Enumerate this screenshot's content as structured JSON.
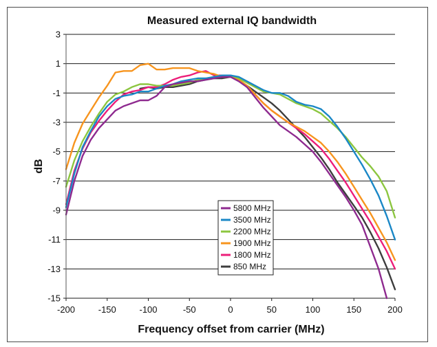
{
  "chart_data": {
    "type": "line",
    "title": "Measured external IQ bandwidth",
    "xlabel": "Frequency offset from carrier (MHz)",
    "ylabel": "dB",
    "xlim": [
      -200,
      200
    ],
    "ylim": [
      -15,
      3
    ],
    "xticks": [
      -200,
      -150,
      -100,
      -50,
      0,
      50,
      100,
      150,
      200
    ],
    "yticks": [
      3,
      1,
      -1,
      -3,
      -5,
      -7,
      -9,
      -11,
      -13,
      -15
    ],
    "xtick_labels": [
      "-200",
      "-150",
      "-100",
      "-50",
      "0",
      "50",
      "100",
      "150",
      "200"
    ],
    "ytick_labels": [
      "3",
      "1",
      "-1",
      "-3",
      "-5",
      "-7",
      "-9",
      "-11",
      "-13",
      "-15"
    ],
    "grid": "horizontal",
    "legend_position": "bottom-center",
    "series": [
      {
        "name": "5800 MHz",
        "color": "#8e2a8f",
        "points": [
          [
            -200,
            -9.3
          ],
          [
            -190,
            -7.0
          ],
          [
            -180,
            -5.3
          ],
          [
            -170,
            -4.2
          ],
          [
            -160,
            -3.4
          ],
          [
            -150,
            -2.8
          ],
          [
            -140,
            -2.2
          ],
          [
            -130,
            -1.9
          ],
          [
            -120,
            -1.7
          ],
          [
            -110,
            -1.5
          ],
          [
            -100,
            -1.5
          ],
          [
            -90,
            -1.2
          ],
          [
            -80,
            -0.6
          ],
          [
            -70,
            -0.4
          ],
          [
            -60,
            -0.3
          ],
          [
            -50,
            -0.2
          ],
          [
            -40,
            -0.2
          ],
          [
            -30,
            -0.1
          ],
          [
            -20,
            0.0
          ],
          [
            -10,
            0.1
          ],
          [
            0,
            0.1
          ],
          [
            10,
            -0.2
          ],
          [
            20,
            -0.6
          ],
          [
            30,
            -1.3
          ],
          [
            40,
            -2.0
          ],
          [
            50,
            -2.6
          ],
          [
            60,
            -3.2
          ],
          [
            70,
            -3.6
          ],
          [
            80,
            -4.0
          ],
          [
            90,
            -4.5
          ],
          [
            100,
            -5.0
          ],
          [
            110,
            -5.7
          ],
          [
            120,
            -6.5
          ],
          [
            130,
            -7.3
          ],
          [
            140,
            -8.1
          ],
          [
            150,
            -9.0
          ],
          [
            160,
            -10.0
          ],
          [
            170,
            -11.5
          ],
          [
            180,
            -13.0
          ],
          [
            190,
            -15.0
          ]
        ]
      },
      {
        "name": "3500 MHz",
        "color": "#1a87c6",
        "points": [
          [
            -200,
            -8.8
          ],
          [
            -190,
            -6.5
          ],
          [
            -180,
            -4.7
          ],
          [
            -170,
            -3.6
          ],
          [
            -160,
            -2.6
          ],
          [
            -150,
            -1.9
          ],
          [
            -140,
            -1.4
          ],
          [
            -130,
            -1.2
          ],
          [
            -120,
            -1.1
          ],
          [
            -110,
            -0.9
          ],
          [
            -100,
            -0.9
          ],
          [
            -90,
            -0.7
          ],
          [
            -80,
            -0.5
          ],
          [
            -70,
            -0.4
          ],
          [
            -60,
            -0.2
          ],
          [
            -50,
            -0.1
          ],
          [
            -40,
            0.0
          ],
          [
            -30,
            0.0
          ],
          [
            -20,
            0.1
          ],
          [
            -10,
            0.2
          ],
          [
            0,
            0.2
          ],
          [
            10,
            0.1
          ],
          [
            20,
            -0.2
          ],
          [
            30,
            -0.5
          ],
          [
            40,
            -0.8
          ],
          [
            50,
            -1.0
          ],
          [
            60,
            -1.0
          ],
          [
            70,
            -1.2
          ],
          [
            80,
            -1.6
          ],
          [
            90,
            -1.8
          ],
          [
            100,
            -1.9
          ],
          [
            110,
            -2.1
          ],
          [
            120,
            -2.6
          ],
          [
            130,
            -3.3
          ],
          [
            140,
            -4.1
          ],
          [
            150,
            -5.0
          ],
          [
            160,
            -5.9
          ],
          [
            170,
            -6.9
          ],
          [
            180,
            -8.0
          ],
          [
            190,
            -9.4
          ],
          [
            200,
            -11.0
          ]
        ]
      },
      {
        "name": "2200 MHz",
        "color": "#8cc63f",
        "points": [
          [
            -200,
            -7.4
          ],
          [
            -190,
            -5.6
          ],
          [
            -180,
            -4.3
          ],
          [
            -170,
            -3.3
          ],
          [
            -160,
            -2.4
          ],
          [
            -150,
            -1.6
          ],
          [
            -140,
            -1.1
          ],
          [
            -130,
            -0.9
          ],
          [
            -120,
            -0.6
          ],
          [
            -110,
            -0.4
          ],
          [
            -100,
            -0.4
          ],
          [
            -90,
            -0.5
          ],
          [
            -80,
            -0.5
          ],
          [
            -70,
            -0.5
          ],
          [
            -60,
            -0.4
          ],
          [
            -50,
            -0.3
          ],
          [
            -40,
            -0.1
          ],
          [
            -30,
            0.0
          ],
          [
            -20,
            0.1
          ],
          [
            -10,
            0.2
          ],
          [
            0,
            0.2
          ],
          [
            10,
            0.0
          ],
          [
            20,
            -0.3
          ],
          [
            30,
            -0.6
          ],
          [
            40,
            -0.9
          ],
          [
            50,
            -1.0
          ],
          [
            60,
            -1.1
          ],
          [
            70,
            -1.4
          ],
          [
            80,
            -1.7
          ],
          [
            90,
            -1.9
          ],
          [
            100,
            -2.1
          ],
          [
            110,
            -2.4
          ],
          [
            120,
            -2.9
          ],
          [
            130,
            -3.4
          ],
          [
            140,
            -4.0
          ],
          [
            150,
            -4.7
          ],
          [
            160,
            -5.4
          ],
          [
            170,
            -6.0
          ],
          [
            180,
            -6.7
          ],
          [
            190,
            -7.7
          ],
          [
            200,
            -9.5
          ]
        ]
      },
      {
        "name": "1900 MHz",
        "color": "#f7941d",
        "points": [
          [
            -200,
            -6.2
          ],
          [
            -190,
            -4.4
          ],
          [
            -180,
            -3.1
          ],
          [
            -170,
            -2.2
          ],
          [
            -160,
            -1.3
          ],
          [
            -150,
            -0.5
          ],
          [
            -140,
            0.4
          ],
          [
            -130,
            0.5
          ],
          [
            -120,
            0.5
          ],
          [
            -110,
            0.9
          ],
          [
            -100,
            1.0
          ],
          [
            -90,
            0.6
          ],
          [
            -80,
            0.6
          ],
          [
            -70,
            0.7
          ],
          [
            -60,
            0.7
          ],
          [
            -50,
            0.7
          ],
          [
            -40,
            0.5
          ],
          [
            -30,
            0.4
          ],
          [
            -20,
            0.3
          ],
          [
            -10,
            0.1
          ],
          [
            0,
            0.1
          ],
          [
            10,
            -0.1
          ],
          [
            20,
            -0.5
          ],
          [
            30,
            -1.1
          ],
          [
            40,
            -1.7
          ],
          [
            50,
            -2.2
          ],
          [
            60,
            -2.6
          ],
          [
            70,
            -3.0
          ],
          [
            80,
            -3.3
          ],
          [
            90,
            -3.6
          ],
          [
            100,
            -4.0
          ],
          [
            110,
            -4.4
          ],
          [
            120,
            -5.0
          ],
          [
            130,
            -5.7
          ],
          [
            140,
            -6.5
          ],
          [
            150,
            -7.4
          ],
          [
            160,
            -8.3
          ],
          [
            170,
            -9.2
          ],
          [
            180,
            -10.2
          ],
          [
            190,
            -11.2
          ],
          [
            200,
            -12.4
          ]
        ]
      },
      {
        "name": "1800 MHz",
        "color": "#ec1e79",
        "points": [
          [
            -200,
            -8.6
          ],
          [
            -190,
            -6.3
          ],
          [
            -180,
            -4.8
          ],
          [
            -170,
            -3.7
          ],
          [
            -160,
            -2.9
          ],
          [
            -150,
            -2.2
          ],
          [
            -140,
            -1.6
          ],
          [
            -130,
            -1.1
          ],
          [
            -120,
            -0.9
          ],
          [
            -110,
            -0.8
          ],
          [
            -100,
            -0.6
          ],
          [
            -90,
            -0.6
          ],
          [
            -80,
            -0.4
          ],
          [
            -70,
            -0.1
          ],
          [
            -60,
            0.1
          ],
          [
            -50,
            0.2
          ],
          [
            -40,
            0.4
          ],
          [
            -30,
            0.5
          ],
          [
            -20,
            0.2
          ],
          [
            -10,
            0.2
          ],
          [
            0,
            0.2
          ],
          [
            10,
            -0.1
          ],
          [
            20,
            -0.6
          ],
          [
            30,
            -1.1
          ],
          [
            40,
            -1.7
          ],
          [
            50,
            -2.2
          ],
          [
            60,
            -2.6
          ],
          [
            70,
            -3.0
          ],
          [
            80,
            -3.4
          ],
          [
            90,
            -3.8
          ],
          [
            100,
            -4.3
          ],
          [
            110,
            -4.8
          ],
          [
            120,
            -5.5
          ],
          [
            130,
            -6.3
          ],
          [
            140,
            -7.1
          ],
          [
            150,
            -8.0
          ],
          [
            160,
            -8.9
          ],
          [
            170,
            -9.8
          ],
          [
            180,
            -10.8
          ],
          [
            190,
            -11.8
          ],
          [
            200,
            -13.0
          ]
        ]
      },
      {
        "name": "850 MHz",
        "color": "#3d3d3d",
        "points": [
          [
            -110,
            -0.7
          ],
          [
            -100,
            -0.6
          ],
          [
            -90,
            -0.7
          ],
          [
            -80,
            -0.6
          ],
          [
            -70,
            -0.6
          ],
          [
            -60,
            -0.5
          ],
          [
            -50,
            -0.4
          ],
          [
            -40,
            -0.2
          ],
          [
            -30,
            -0.1
          ],
          [
            -20,
            0.0
          ],
          [
            -10,
            0.0
          ],
          [
            0,
            0.1
          ],
          [
            10,
            -0.1
          ],
          [
            20,
            -0.5
          ],
          [
            30,
            -0.9
          ],
          [
            40,
            -1.3
          ],
          [
            50,
            -1.7
          ],
          [
            60,
            -2.2
          ],
          [
            70,
            -2.8
          ],
          [
            80,
            -3.4
          ],
          [
            90,
            -4.0
          ],
          [
            100,
            -4.7
          ],
          [
            110,
            -5.4
          ],
          [
            120,
            -6.2
          ],
          [
            130,
            -7.1
          ],
          [
            140,
            -7.9
          ],
          [
            150,
            -8.7
          ],
          [
            160,
            -9.5
          ],
          [
            170,
            -10.5
          ],
          [
            180,
            -11.6
          ],
          [
            190,
            -12.9
          ],
          [
            200,
            -14.4
          ]
        ]
      }
    ]
  }
}
